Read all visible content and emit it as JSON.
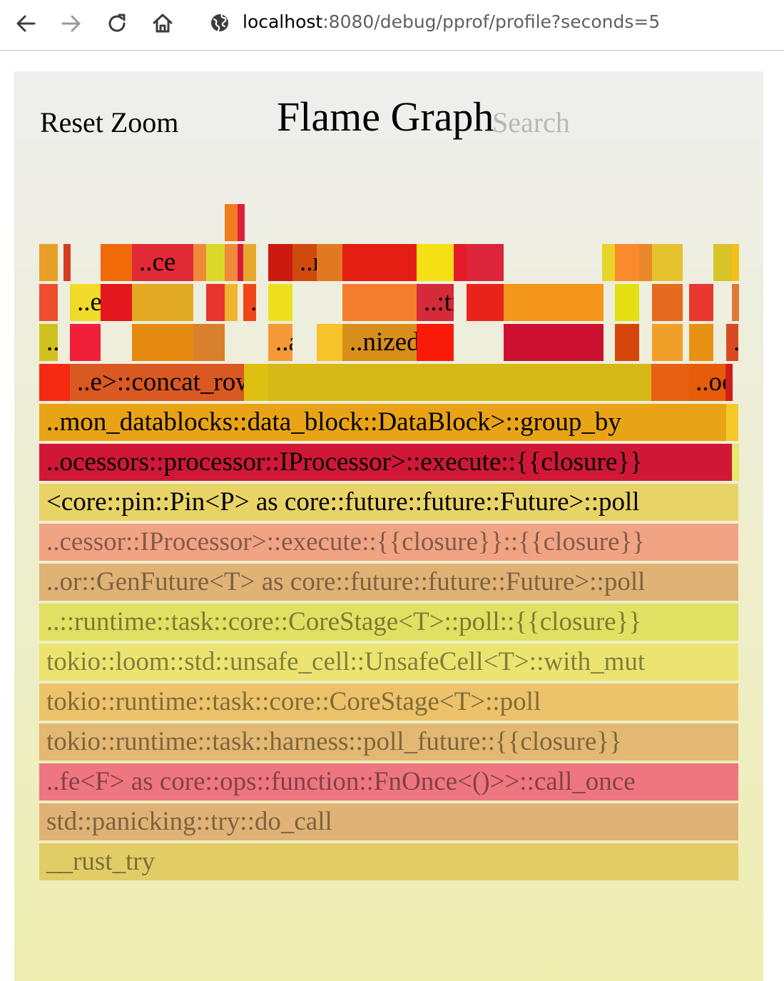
{
  "browser": {
    "url_host": "localhost",
    "url_rest": ":8080/debug/pprof/profile?seconds=5",
    "icons": [
      "back-arrow-icon",
      "forward-arrow-icon",
      "reload-icon",
      "home-icon",
      "globe-icon"
    ]
  },
  "flamegraph": {
    "reset_zoom": "Reset Zoom",
    "title": "Flame Graph",
    "search": "Search",
    "frames": [
      {
        "label": "",
        "color": "#f07c1e"
      },
      {
        "label": "",
        "color": "#e41c3c"
      },
      {
        "label": "",
        "color": "#e8a028"
      },
      {
        "label": "",
        "color": "#d63c22"
      },
      {
        "label": "",
        "color": "#f06a0a"
      },
      {
        "label": "..ce",
        "color": "#e02a36"
      },
      {
        "label": "",
        "color": "#f08a3a"
      },
      {
        "label": "",
        "color": "#dcd82a"
      },
      {
        "label": "",
        "color": "#f08a3a"
      },
      {
        "label": "",
        "color": "#d61a3e"
      },
      {
        "label": "",
        "color": "#e8a82c"
      },
      {
        "label": "",
        "color": "#cc1a0e"
      },
      {
        "label": "..race",
        "color": "#d04a10"
      },
      {
        "label": "",
        "color": "#e07a22"
      },
      {
        "label": "",
        "color": "#e41e12"
      },
      {
        "label": "",
        "color": "#f5e016"
      },
      {
        "label": "",
        "color": "#e41c2a"
      },
      {
        "label": "",
        "color": "#dc243a"
      },
      {
        "label": "",
        "color": "#e6d428"
      },
      {
        "label": "",
        "color": "#fa8a2a"
      },
      {
        "label": "",
        "color": "#e8882a"
      },
      {
        "label": "",
        "color": "#e6c22e"
      },
      {
        "label": "",
        "color": "#d8c428"
      },
      {
        "label": "",
        "color": "#f4c018"
      },
      {
        "label": "",
        "color": "#ee4e2e"
      },
      {
        "label": "..ed",
        "color": "#f0dc28"
      },
      {
        "label": "",
        "color": "#e4161e"
      },
      {
        "label": "",
        "color": "#e2aa22"
      },
      {
        "label": "",
        "color": "#e8342c"
      },
      {
        "label": "",
        "color": "#f0b42e"
      },
      {
        "label": "..zed",
        "color": "#f04616"
      },
      {
        "label": "",
        "color": "#ece01e"
      },
      {
        "label": "",
        "color": "#f47e2e"
      },
      {
        "label": "..:trace",
        "color": "#d42a3a"
      },
      {
        "label": "",
        "color": "#e8241a"
      },
      {
        "label": "",
        "color": "#f4961a"
      },
      {
        "label": "",
        "color": "#e2e010"
      },
      {
        "label": "",
        "color": "#e46a1e"
      },
      {
        "label": "",
        "color": "#e83830"
      },
      {
        "label": "",
        "color": "#de7834"
      },
      {
        "label": "..ll",
        "color": "#d0c21e"
      },
      {
        "label": "",
        "color": "#f0203a"
      },
      {
        "label": "",
        "color": "#e48a10"
      },
      {
        "label": "",
        "color": "#d8802c"
      },
      {
        "label": "..ack",
        "color": "#f49a36"
      },
      {
        "label": "",
        "color": "#f6c42a"
      },
      {
        "label": "..nized",
        "color": "#d88e1a"
      },
      {
        "label": "",
        "color": "#fa1a0a"
      },
      {
        "label": "",
        "color": "#cc1030"
      },
      {
        "label": "",
        "color": "#d6460c"
      },
      {
        "label": "",
        "color": "#f0a028"
      },
      {
        "label": "",
        "color": "#e89214"
      },
      {
        "label": "..rator>::next",
        "color": "#d84a22"
      },
      {
        "label": "",
        "color": "#f52a10"
      },
      {
        "label": "..e>::concat_row_to_one_key",
        "color": "#da5822"
      },
      {
        "label": "",
        "color": "#dec012"
      },
      {
        "label": "",
        "color": "#d6b816"
      },
      {
        "label": "",
        "color": "#e86014"
      },
      {
        "label": "..ocks::data_block::DataBlock>::group_by_get_indices",
        "color": "#e65c0a"
      },
      {
        "label": "",
        "color": "#d01c1c"
      },
      {
        "label": "..mon_datablocks::data_block::DataBlock>::group_by",
        "color": "#e8a416"
      },
      {
        "label": "",
        "color": "#f6c82a"
      },
      {
        "label": "..ocessors::processor::IProcessor>::execute::{{closure}}",
        "color": "#d01836"
      },
      {
        "label": "..or::GenFuture<T> as core::future::future::Future>::poll",
        "color": "#ece66c"
      },
      {
        "label": "<core::pin::Pin<P> as core::future::future::Future>::poll",
        "color": "#e8d466"
      },
      {
        "label": "..cessor::IProcessor>::execute::{{closure}}::{{closure}}",
        "color": "#f0a484"
      },
      {
        "label": "..or::GenFuture<T> as core::future::future::Future>::poll",
        "color": "#e0b276"
      },
      {
        "label": "..::runtime::task::core::CoreStage<T>::poll::{{closure}}",
        "color": "#e0e062"
      },
      {
        "label": "tokio::loom::std::unsafe_cell::UnsafeCell<T>::with_mut",
        "color": "#ece470"
      },
      {
        "label": "tokio::runtime::task::core::CoreStage<T>::poll",
        "color": "#ecc26a"
      },
      {
        "label": "tokio::runtime::task::harness::poll_future::{{closure}}",
        "color": "#e2b872"
      },
      {
        "label": "..fe<F> as core::ops::function::FnOnce<()>>::call_once",
        "color": "#ee7680"
      },
      {
        "label": "std::panicking::try::do_call",
        "color": "#e0b276"
      },
      {
        "label": "__rust_try",
        "color": "#e2cc66"
      }
    ]
  }
}
